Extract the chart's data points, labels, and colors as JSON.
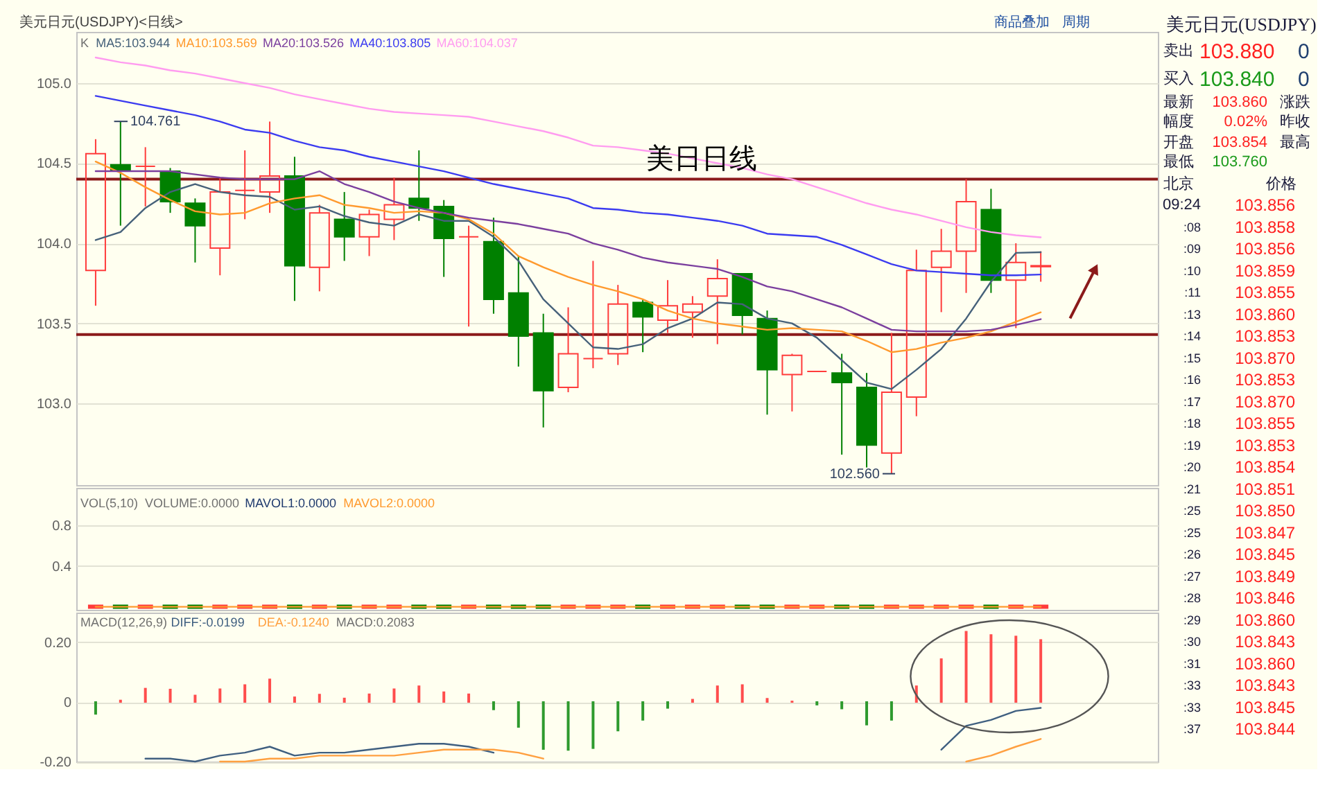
{
  "chart_data": [
    {
      "type": "candlestick",
      "title": "美元日元(USDJPY)<日线>",
      "categories": [
        null,
        null,
        null,
        null,
        null,
        null,
        null,
        null,
        null,
        null,
        null,
        null,
        null,
        null,
        null,
        null,
        null,
        null,
        null,
        null,
        null,
        null,
        null,
        null,
        null,
        null,
        null,
        null,
        null,
        null,
        null,
        null,
        null,
        null,
        null,
        null,
        null,
        null,
        null
      ],
      "ylim": [
        102.49,
        105.32
      ],
      "yticks": [
        {
          "value": 103,
          "label": "103.0"
        },
        103.5,
        {
          "value": 104,
          "label": "104.0"
        },
        104.5,
        {
          "value": 105,
          "label": "105.0"
        }
      ],
      "grid": "y",
      "legend": "top left",
      "series": [
        {
          "type": "candlestick",
          "ohlc": [
            [
              103.83,
              104.65,
              103.61,
              104.56
            ],
            [
              104.49,
              104.761,
              104.11,
              104.45
            ],
            [
              104.48,
              104.6,
              104.23,
              104.48
            ],
            [
              104.45,
              104.47,
              104.19,
              104.26
            ],
            [
              104.25,
              104.28,
              103.88,
              104.11
            ],
            [
              103.97,
              104.41,
              103.8,
              104.32
            ],
            [
              104.33,
              104.58,
              104.15,
              104.33
            ],
            [
              104.32,
              104.76,
              104.19,
              104.42
            ],
            [
              104.42,
              104.54,
              103.64,
              103.86
            ],
            [
              103.85,
              104.24,
              103.7,
              104.19
            ],
            [
              104.15,
              104.32,
              103.89,
              104.04
            ],
            [
              104.04,
              104.21,
              103.92,
              104.18
            ],
            [
              104.15,
              104.41,
              104.02,
              104.24
            ],
            [
              104.28,
              104.58,
              104.14,
              104.22
            ],
            [
              104.23,
              104.27,
              103.79,
              104.03
            ],
            [
              104.04,
              104.11,
              103.48,
              104.04
            ],
            [
              104.01,
              104.16,
              103.56,
              103.65
            ],
            [
              103.69,
              103.92,
              103.23,
              103.42
            ],
            [
              103.44,
              103.56,
              102.85,
              103.08
            ],
            [
              103.1,
              103.6,
              103.07,
              103.31
            ],
            [
              103.28,
              103.89,
              103.22,
              103.28
            ],
            [
              103.31,
              103.74,
              103.24,
              103.62
            ],
            [
              103.63,
              103.65,
              103.32,
              103.54
            ],
            [
              103.52,
              103.77,
              103.44,
              103.61
            ],
            [
              103.57,
              103.67,
              103.41,
              103.62
            ],
            [
              103.67,
              103.9,
              103.37,
              103.78
            ],
            [
              103.81,
              103.81,
              103.43,
              103.55
            ],
            [
              103.53,
              103.58,
              102.93,
              103.21
            ],
            [
              103.18,
              103.31,
              102.95,
              103.3
            ],
            [
              103.2,
              103.2,
              103.2,
              103.2
            ],
            [
              103.19,
              103.31,
              102.68,
              103.13
            ],
            [
              103.1,
              103.19,
              102.6,
              102.74
            ],
            [
              102.69,
              103.44,
              102.56,
              103.07
            ],
            [
              103.04,
              103.96,
              102.92,
              103.83
            ],
            [
              103.85,
              104.09,
              103.57,
              103.95
            ],
            [
              103.95,
              104.4,
              103.69,
              104.26
            ],
            [
              104.21,
              104.34,
              103.69,
              103.77
            ],
            [
              103.77,
              104.0,
              103.47,
              103.88
            ],
            [
              103.854,
              103.95,
              103.76,
              103.86
            ]
          ],
          "colors": [
            "#ff3b3b",
            "#008000",
            "#ff3b3b",
            "#008000",
            "#008000",
            "#ff3b3b",
            "#ff3b3b",
            "#ff3b3b",
            "#008000",
            "#ff3b3b",
            "#008000",
            "#ff3b3b",
            "#ff3b3b",
            "#008000",
            "#008000",
            "#ff3b3b",
            "#008000",
            "#008000",
            "#008000",
            "#ff3b3b",
            "#ff3b3b",
            "#ff3b3b",
            "#008000",
            "#ff3b3b",
            "#ff3b3b",
            "#ff3b3b",
            "#008000",
            "#008000",
            "#ff3b3b",
            "#ff3b3b",
            "#008000",
            "#008000",
            "#ff3b3b",
            "#ff3b3b",
            "#ff3b3b",
            "#ff3b3b",
            "#008000",
            "#ff3b3b",
            "#ff3b3b"
          ]
        },
        {
          "name": "MA5:103.944",
          "type": "line",
          "color": "#46617a",
          "values": [
            104.02,
            104.07,
            104.22,
            104.32,
            104.37,
            104.32,
            104.3,
            104.29,
            104.21,
            104.23,
            104.17,
            104.13,
            104.11,
            104.18,
            104.14,
            104.14,
            104.04,
            103.89,
            103.65,
            103.5,
            103.35,
            103.34,
            103.37,
            103.47,
            103.53,
            103.63,
            103.62,
            103.53,
            103.5,
            103.41,
            103.27,
            103.13,
            103.09,
            103.21,
            103.34,
            103.53,
            103.76,
            103.94,
            103.944
          ]
        },
        {
          "name": "MA10:103.569",
          "type": "line",
          "color": "#ff9a2e",
          "values": [
            104.51,
            104.44,
            104.35,
            104.27,
            104.2,
            104.18,
            104.19,
            104.25,
            104.28,
            104.3,
            104.24,
            104.22,
            104.19,
            104.2,
            104.19,
            104.15,
            104.06,
            103.92,
            103.85,
            103.79,
            103.74,
            103.7,
            103.65,
            103.58,
            103.53,
            103.5,
            103.48,
            103.46,
            103.47,
            103.46,
            103.45,
            103.39,
            103.32,
            103.34,
            103.38,
            103.41,
            103.45,
            103.51,
            103.569
          ]
        },
        {
          "name": "MA20:103.526",
          "type": "line",
          "color": "#7b3f9e",
          "values": [
            104.45,
            104.45,
            104.45,
            104.45,
            104.43,
            104.41,
            104.4,
            104.4,
            104.4,
            104.45,
            104.37,
            104.32,
            104.26,
            104.22,
            104.19,
            104.16,
            104.14,
            104.12,
            104.09,
            104.06,
            104.0,
            103.96,
            103.91,
            103.88,
            103.86,
            103.84,
            103.79,
            103.73,
            103.7,
            103.65,
            103.6,
            103.53,
            103.46,
            103.45,
            103.45,
            103.45,
            103.46,
            103.49,
            103.526
          ]
        },
        {
          "name": "MA40:103.805",
          "type": "line",
          "color": "#3b3bf0",
          "values": [
            104.92,
            104.89,
            104.86,
            104.83,
            104.8,
            104.76,
            104.71,
            104.69,
            104.64,
            104.6,
            104.58,
            104.54,
            104.51,
            104.48,
            104.45,
            104.41,
            104.37,
            104.34,
            104.31,
            104.28,
            104.22,
            104.21,
            104.19,
            104.18,
            104.16,
            104.14,
            104.11,
            104.06,
            104.05,
            104.04,
            103.99,
            103.93,
            103.87,
            103.83,
            103.82,
            103.81,
            103.8,
            103.8,
            103.805
          ]
        },
        {
          "name": "MA60:104.037",
          "type": "line",
          "color": "#ff9cf0",
          "values": [
            105.16,
            105.13,
            105.11,
            105.08,
            105.06,
            105.03,
            105.0,
            104.97,
            104.93,
            104.9,
            104.87,
            104.84,
            104.82,
            104.81,
            104.8,
            104.79,
            104.76,
            104.73,
            104.7,
            104.66,
            104.61,
            104.6,
            104.58,
            104.56,
            104.53,
            104.5,
            104.47,
            104.43,
            104.4,
            104.35,
            104.3,
            104.25,
            104.21,
            104.18,
            104.14,
            104.1,
            104.07,
            104.05,
            104.037
          ]
        }
      ],
      "ref_lines": [
        {
          "axis": "y",
          "value": 104.4,
          "color": "#8b1a1a"
        },
        {
          "axis": "y",
          "value": 103.43,
          "color": "#8b1a1a"
        }
      ],
      "annotations": [
        "K",
        "商品叠加",
        "周期",
        "美日日线",
        "104.761",
        "102.560"
      ]
    },
    {
      "type": "bar",
      "title": "VOL(5,10)",
      "categories": [
        null,
        null,
        null,
        null,
        null,
        null,
        null,
        null,
        null,
        null,
        null,
        null,
        null,
        null,
        null,
        null,
        null,
        null,
        null,
        null,
        null,
        null,
        null,
        null,
        null,
        null,
        null,
        null,
        null,
        null,
        null,
        null,
        null,
        null,
        null,
        null,
        null,
        null,
        null
      ],
      "ylim": [
        -0.03,
        1.17
      ],
      "yticks": [
        0.4,
        0.8
      ],
      "grid": "y",
      "legend": "top left",
      "series": [
        {
          "type": "bar",
          "values": [
            0,
            0,
            0,
            0,
            0,
            0,
            0,
            0,
            0,
            0,
            0,
            0,
            0,
            0,
            0,
            0,
            0,
            0,
            0,
            0,
            0,
            0,
            0,
            0,
            0,
            0,
            0,
            0,
            0,
            0,
            0,
            0,
            0,
            0,
            0,
            0,
            0,
            0,
            0
          ],
          "colors": [
            "#ff3b3b",
            "#008000",
            "#ff3b3b",
            "#008000",
            "#008000",
            "#ff3b3b",
            "#ff3b3b",
            "#ff3b3b",
            "#008000",
            "#ff3b3b",
            "#008000",
            "#ff3b3b",
            "#ff3b3b",
            "#008000",
            "#008000",
            "#ff3b3b",
            "#008000",
            "#008000",
            "#008000",
            "#ff3b3b",
            "#ff3b3b",
            "#ff3b3b",
            "#008000",
            "#ff3b3b",
            "#ff3b3b",
            "#ff3b3b",
            "#008000",
            "#008000",
            "#ff3b3b",
            "#ff3b3b",
            "#008000",
            "#008000",
            "#ff3b3b",
            "#ff3b3b",
            "#ff3b3b",
            "#ff3b3b",
            "#008000",
            "#ff3b3b",
            "#ff3b3b"
          ]
        },
        {
          "name": "MAVOL1:0.0000",
          "type": "line",
          "color": "#1f3a6e",
          "values": [
            null,
            null,
            null,
            null,
            null,
            null,
            null,
            null,
            null,
            null,
            null,
            null,
            null,
            null,
            null,
            null,
            null,
            null,
            null,
            null,
            null,
            null,
            null,
            null,
            null,
            null,
            null,
            null,
            null,
            null,
            null,
            null,
            null,
            null,
            null,
            null,
            null,
            null,
            null
          ]
        },
        {
          "name": "MAVOL2:0.0000",
          "type": "line",
          "color": "#ff9a2e",
          "values": [
            0,
            0,
            0,
            0,
            0,
            0,
            0,
            0,
            0,
            0,
            0,
            0,
            0,
            0,
            0,
            0,
            0,
            0,
            0,
            0,
            0,
            0,
            0,
            0,
            0,
            0,
            0,
            0,
            0,
            0,
            0,
            0,
            0,
            0,
            0,
            0,
            0,
            0,
            0
          ]
        }
      ],
      "annotations": [
        "VOLUME:0.0000"
      ]
    },
    {
      "type": "bar",
      "title": "MACD(12,26,9)",
      "categories": [
        null,
        null,
        null,
        null,
        null,
        null,
        null,
        null,
        null,
        null,
        null,
        null,
        null,
        null,
        null,
        null,
        null,
        null,
        null,
        null,
        null,
        null,
        null,
        null,
        null,
        null,
        null,
        null,
        null,
        null,
        null,
        null,
        null,
        null,
        null,
        null,
        null,
        null,
        null
      ],
      "ylim": [
        -0.2,
        0.3
      ],
      "yticks": [
        {
          "value": -0.2,
          "label": "-0.20"
        },
        0,
        {
          "value": 0.2,
          "label": "0.20"
        }
      ],
      "grid": "y",
      "legend": "top left",
      "series": [
        {
          "name": "DIFF:-0.0199",
          "type": "line",
          "color": "#3f5f80",
          "values": [
            null,
            null,
            -0.19,
            -0.19,
            -0.2,
            -0.18,
            -0.17,
            -0.15,
            -0.18,
            -0.17,
            -0.17,
            -0.16,
            -0.15,
            -0.14,
            -0.14,
            -0.15,
            -0.17,
            null,
            null,
            null,
            null,
            null,
            null,
            null,
            null,
            null,
            null,
            null,
            null,
            null,
            null,
            null,
            null,
            null,
            -0.16,
            -0.08,
            -0.06,
            -0.03,
            -0.0199
          ]
        },
        {
          "name": "DEA:-0.1240",
          "type": "line",
          "color": "#ffa040",
          "values": [
            null,
            null,
            null,
            null,
            null,
            -0.2,
            -0.2,
            -0.19,
            -0.19,
            -0.18,
            -0.18,
            -0.18,
            -0.18,
            -0.17,
            -0.16,
            -0.16,
            -0.16,
            -0.17,
            -0.19,
            null,
            null,
            null,
            null,
            null,
            null,
            null,
            null,
            null,
            null,
            null,
            null,
            null,
            null,
            null,
            null,
            -0.2,
            -0.18,
            -0.15,
            -0.124
          ]
        },
        {
          "type": "bar",
          "values": [
            -0.04,
            0.005,
            0.045,
            0.042,
            0.022,
            0.043,
            0.057,
            0.076,
            0.016,
            0.025,
            0.012,
            0.026,
            0.043,
            0.053,
            0.033,
            0.026,
            -0.025,
            -0.084,
            -0.158,
            -0.161,
            -0.155,
            -0.096,
            -0.06,
            -0.02,
            0.008,
            0.053,
            0.057,
            0.011,
            0.002,
            -0.009,
            -0.022,
            -0.076,
            -0.06,
            0.053,
            0.144,
            0.236,
            0.225,
            0.22,
            0.2083
          ],
          "colors": [
            "#2e9a2e",
            "#ff4d4d",
            "#ff4d4d",
            "#ff4d4d",
            "#ff4d4d",
            "#ff4d4d",
            "#ff4d4d",
            "#ff4d4d",
            "#ff4d4d",
            "#ff4d4d",
            "#ff4d4d",
            "#ff4d4d",
            "#ff4d4d",
            "#ff4d4d",
            "#ff4d4d",
            "#ff4d4d",
            "#2e9a2e",
            "#2e9a2e",
            "#2e9a2e",
            "#2e9a2e",
            "#2e9a2e",
            "#2e9a2e",
            "#2e9a2e",
            "#2e9a2e",
            "#ff4d4d",
            "#ff4d4d",
            "#ff4d4d",
            "#ff4d4d",
            "#ff4d4d",
            "#2e9a2e",
            "#2e9a2e",
            "#2e9a2e",
            "#2e9a2e",
            "#ff4d4d",
            "#ff4d4d",
            "#ff4d4d",
            "#ff4d4d",
            "#ff4d4d",
            "#ff4d4d"
          ]
        }
      ],
      "annotations": [
        "MACD:0.2083"
      ]
    },
    {
      "type": "other",
      "title": "美元日元(USDJPY)",
      "annotations": [
        "卖出",
        "103.880",
        "0",
        "买入",
        "103.840",
        "0",
        "最新",
        "103.860",
        "涨跌",
        "幅度",
        "0.02%",
        "昨收",
        "开盘",
        "103.854",
        "最高",
        "最低",
        "103.760",
        "北京",
        "价格",
        "09:24",
        "103.856",
        ":08",
        "103.858",
        ":09",
        "103.856",
        ":10",
        "103.859",
        ":11",
        "103.855",
        ":13",
        "103.860",
        ":14",
        "103.853",
        ":15",
        "103.870",
        ":16",
        "103.853",
        ":17",
        "103.870",
        ":18",
        "103.855",
        ":19",
        "103.853",
        ":20",
        "103.854",
        ":21",
        "103.851",
        ":25",
        "103.850",
        ":25",
        "103.847",
        ":26",
        "103.845",
        ":27",
        "103.849",
        ":28",
        "103.846",
        ":29",
        "103.860",
        ":30",
        "103.843",
        ":31",
        "103.860",
        ":33",
        "103.843",
        ":33",
        "103.845",
        ":37",
        "103.844"
      ]
    }
  ]
}
